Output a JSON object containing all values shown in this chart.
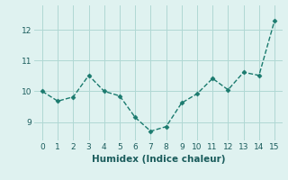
{
  "x": [
    0,
    1,
    2,
    3,
    4,
    5,
    6,
    7,
    8,
    9,
    10,
    11,
    12,
    13,
    14,
    15
  ],
  "y": [
    10.0,
    9.68,
    9.82,
    10.52,
    10.0,
    9.85,
    9.15,
    8.7,
    8.85,
    9.62,
    9.92,
    10.42,
    10.05,
    10.62,
    10.52,
    12.3
  ],
  "line_color": "#1a7a6e",
  "marker": "D",
  "marker_size": 2.5,
  "line_width": 1.0,
  "xlabel": "Humidex (Indice chaleur)",
  "xlabel_fontsize": 7.5,
  "xlabel_color": "#1a5c5c",
  "xlim": [
    -0.5,
    15.5
  ],
  "ylim": [
    8.4,
    12.8
  ],
  "yticks": [
    9,
    10,
    11,
    12
  ],
  "xticks": [
    0,
    1,
    2,
    3,
    4,
    5,
    6,
    7,
    8,
    9,
    10,
    11,
    12,
    13,
    14,
    15
  ],
  "background_color": "#dff2f0",
  "grid_color": "#b0d8d4",
  "tick_fontsize": 6.5,
  "tick_color": "#1a5c5c"
}
